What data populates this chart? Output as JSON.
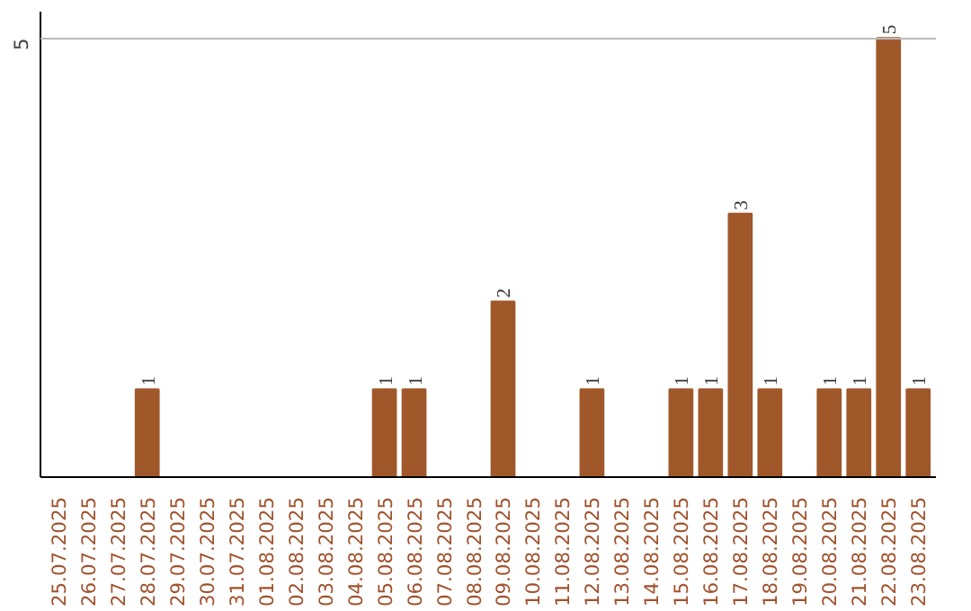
{
  "chart_data": {
    "type": "bar",
    "categories": [
      "25.07.2025",
      "26.07.2025",
      "27.07.2025",
      "28.07.2025",
      "29.07.2025",
      "30.07.2025",
      "31.07.2025",
      "01.08.2025",
      "02.08.2025",
      "03.08.2025",
      "04.08.2025",
      "05.08.2025",
      "06.08.2025",
      "07.08.2025",
      "08.08.2025",
      "09.08.2025",
      "10.08.2025",
      "11.08.2025",
      "12.08.2025",
      "13.08.2025",
      "14.08.2025",
      "15.08.2025",
      "16.08.2025",
      "17.08.2025",
      "18.08.2025",
      "19.08.2025",
      "20.08.2025",
      "21.08.2025",
      "22.08.2025",
      "23.08.2025"
    ],
    "values": [
      0,
      0,
      0,
      1,
      0,
      0,
      0,
      0,
      0,
      0,
      0,
      1,
      1,
      0,
      0,
      2,
      0,
      0,
      1,
      0,
      0,
      1,
      1,
      3,
      1,
      0,
      1,
      1,
      5,
      1
    ],
    "value_labels": [
      null,
      null,
      null,
      "1",
      null,
      null,
      null,
      null,
      null,
      null,
      null,
      "1",
      "1",
      null,
      null,
      "2",
      null,
      null,
      "1",
      null,
      null,
      "1",
      "1",
      "3",
      "1",
      null,
      "1",
      "1",
      "5",
      "1"
    ],
    "color": "#a0582a",
    "ylim": [
      0,
      5.3
    ],
    "yticks": [
      5
    ],
    "grid": "y"
  }
}
